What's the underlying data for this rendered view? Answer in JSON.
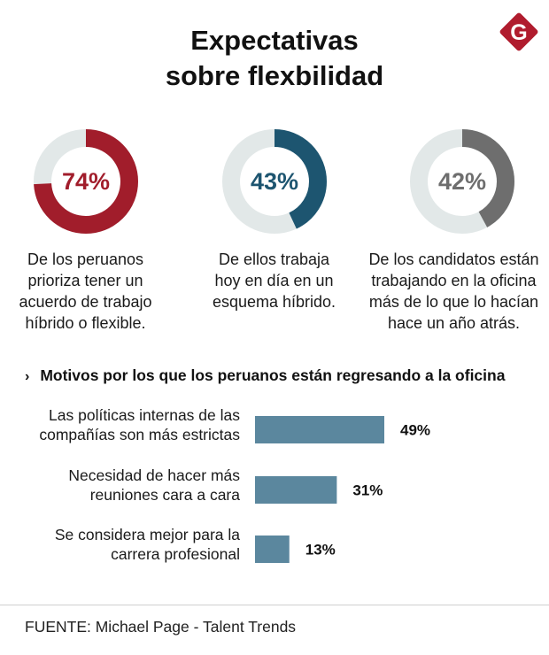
{
  "header": {
    "title_line1": "Expectativas",
    "title_line2": "sobre flexbilidad",
    "logo_letter": "G",
    "logo_color": "#b01c2e"
  },
  "stats": [
    {
      "percent": 74,
      "label": "74%",
      "color": "#a11d2b",
      "lines": [
        "De los peruanos",
        "prioriza tener un",
        "acuerdo de trabajo",
        "híbrido o flexible."
      ]
    },
    {
      "percent": 43,
      "label": "43%",
      "color": "#1d5570",
      "lines": [
        "De ellos trabaja",
        "hoy en día en un",
        "esquema híbrido."
      ]
    },
    {
      "percent": 42,
      "label": "42%",
      "color": "#6e6e6e",
      "lines": [
        "De los candidatos están",
        "trabajando en la oficina",
        "más de lo que lo hacían",
        "hace un año atrás."
      ]
    }
  ],
  "track_color": "#e2e8e8",
  "section": {
    "chevron": "›",
    "title": "Motivos por los que los peruanos están regresando a la oficina"
  },
  "chart_data": {
    "type": "bar",
    "orientation": "horizontal",
    "title": "Motivos por los que los peruanos están regresando a la oficina",
    "categories": [
      [
        "Las políticas internas de las",
        "compañías son más estrictas"
      ],
      [
        "Necesidad de hacer más",
        "reuniones cara a cara"
      ],
      [
        "Se considera mejor para la",
        "carrera profesional"
      ]
    ],
    "values": [
      49,
      31,
      13
    ],
    "value_labels": [
      "49%",
      "31%",
      "13%"
    ],
    "bar_color": "#5b879e",
    "xlim": [
      0,
      100
    ]
  },
  "footer": {
    "source": "FUENTE: Michael Page - Talent Trends"
  }
}
